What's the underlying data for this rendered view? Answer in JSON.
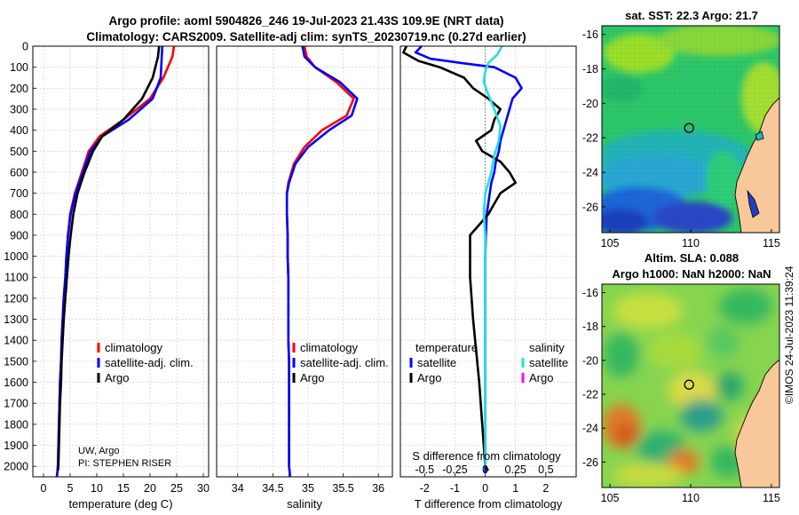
{
  "header": {
    "title_line1": "Argo profile: aoml 5904826_246 19-Jul-2023 21.43S 109.9E (NRT data)",
    "title_line2": "Climatology: CARS2009. Satellite-adj clim: synTS_20230719.nc (0.27d earlier)"
  },
  "credit": "©IMOS 24-Jul-2023 11:39:24",
  "profile_axes": {
    "depth_ticks": [
      0,
      100,
      200,
      300,
      400,
      500,
      600,
      700,
      800,
      900,
      1000,
      1100,
      1200,
      1300,
      1400,
      1500,
      1600,
      1700,
      1800,
      1900,
      2000
    ],
    "depth_range": [
      0,
      2050
    ]
  },
  "chart_data": [
    {
      "type": "line",
      "xlabel": "temperature (deg C)",
      "xlim": [
        -2,
        31
      ],
      "xticks": [
        0,
        5,
        10,
        15,
        20,
        25,
        30
      ],
      "ylim": [
        2050,
        0
      ],
      "legend": [
        "climatology",
        "satellite-adj. clim.",
        "Argo"
      ],
      "annotation_line1": "UW, Argo",
      "annotation_line2": "PI: STEPHEN RISER",
      "series": [
        {
          "name": "climatology",
          "color": "#ff0000",
          "x": [
            24.5,
            24.2,
            22.5,
            20,
            15,
            10.5,
            8.5,
            7.2,
            5.9,
            5.0,
            4.6,
            4.3,
            4.1,
            3.8,
            3.6,
            3.4,
            3.3,
            3.1,
            3.0,
            2.9,
            2.8,
            2.7,
            2.6,
            2.5
          ],
          "y": [
            0,
            50,
            150,
            250,
            350,
            430,
            500,
            600,
            700,
            800,
            900,
            1000,
            1100,
            1200,
            1300,
            1400,
            1500,
            1600,
            1700,
            1800,
            1900,
            2000,
            2030,
            2050
          ]
        },
        {
          "name": "satellite-adj. clim.",
          "color": "#0000ff",
          "x": [
            22.3,
            22.2,
            22.0,
            20.5,
            16,
            11,
            8.8,
            7.4,
            6.0,
            5.1,
            4.6,
            4.3,
            4.1,
            3.8,
            3.6,
            3.4,
            3.3,
            3.1,
            3.0,
            2.9,
            2.8,
            2.7,
            2.6,
            2.5
          ],
          "y": [
            0,
            50,
            150,
            250,
            350,
            430,
            500,
            600,
            700,
            800,
            900,
            1000,
            1100,
            1200,
            1300,
            1400,
            1500,
            1600,
            1700,
            1800,
            1900,
            2000,
            2030,
            2050
          ]
        },
        {
          "name": "Argo",
          "color": "#000000",
          "x": [
            21.7,
            21.5,
            20.5,
            18.5,
            15,
            11,
            9.3,
            7.7,
            6.4,
            5.6,
            5.1,
            4.7,
            4.4,
            4.1,
            3.8,
            3.6,
            3.4,
            3.3,
            3.1,
            3.0,
            2.9,
            2.8,
            2.7
          ],
          "y": [
            0,
            50,
            150,
            250,
            350,
            430,
            500,
            600,
            700,
            800,
            900,
            1000,
            1100,
            1200,
            1300,
            1400,
            1500,
            1600,
            1700,
            1800,
            1900,
            2000,
            2020
          ]
        }
      ]
    },
    {
      "type": "line",
      "xlabel": "salinity",
      "xlim": [
        33.7,
        36.2
      ],
      "xticks": [
        34,
        34.5,
        35,
        35.5,
        36
      ],
      "ylim": [
        2050,
        0
      ],
      "legend": [
        "climatology",
        "satellite-adj. clim.",
        "Argo"
      ],
      "series": [
        {
          "name": "climatology",
          "color": "#ff0000",
          "x": [
            34.95,
            34.98,
            35.1,
            35.4,
            35.65,
            35.55,
            35.2,
            34.95,
            34.8,
            34.72,
            34.7,
            34.7,
            34.71,
            34.71,
            34.72,
            34.72,
            34.72,
            34.72,
            34.73,
            34.73,
            34.73,
            34.73,
            34.73,
            34.73,
            34.74,
            34.74
          ],
          "y": [
            0,
            50,
            100,
            170,
            250,
            330,
            400,
            480,
            560,
            650,
            700,
            800,
            900,
            1000,
            1100,
            1200,
            1300,
            1400,
            1500,
            1600,
            1700,
            1800,
            1900,
            2000,
            2030,
            2050
          ]
        },
        {
          "name": "satellite-adj. clim.",
          "color": "#0000ff",
          "x": [
            34.92,
            34.95,
            35.1,
            35.45,
            35.7,
            35.62,
            35.3,
            35.0,
            34.82,
            34.73,
            34.7,
            34.7,
            34.71,
            34.71,
            34.72,
            34.72,
            34.72,
            34.72,
            34.73,
            34.73,
            34.73,
            34.73,
            34.73,
            34.73,
            34.74,
            34.74
          ],
          "y": [
            0,
            50,
            100,
            170,
            250,
            330,
            400,
            480,
            560,
            650,
            700,
            800,
            900,
            1000,
            1100,
            1200,
            1300,
            1400,
            1500,
            1600,
            1700,
            1800,
            1900,
            2000,
            2030,
            2050
          ]
        }
      ]
    },
    {
      "type": "line",
      "xlabel": "T difference from climatology",
      "xlim": [
        -2.8,
        3.0
      ],
      "xticks": [
        -2,
        -1,
        0,
        1,
        2
      ],
      "top_axis_label": "S difference from climatology",
      "top_ticks": [
        "-0.5",
        "-0.25",
        "0",
        "0.25",
        "0.5"
      ],
      "ylim": [
        2050,
        0
      ],
      "legend_left_header": "temperature",
      "legend_right_header": "salinity",
      "legend_left": [
        "satellite",
        "Argo"
      ],
      "legend_right": [
        "satellite",
        "Argo"
      ],
      "series": [
        {
          "name": "temperature satellite",
          "color": "#0000ff",
          "x": [
            -2.1,
            -2.3,
            -1.8,
            -0.8,
            0.3,
            1.0,
            1.2,
            0.9,
            0.8,
            0.7,
            0.6,
            0.5,
            0.45,
            0.35,
            0.3,
            0.2,
            0.15,
            0.1,
            0.05,
            0.02,
            0.0,
            0.0,
            0.0,
            0.0,
            0.0
          ],
          "y": [
            0,
            30,
            60,
            80,
            100,
            150,
            200,
            250,
            300,
            350,
            400,
            450,
            500,
            550,
            600,
            650,
            700,
            750,
            800,
            900,
            1000,
            1200,
            1500,
            1800,
            2030
          ]
        },
        {
          "name": "temperature Argo",
          "color": "#000000",
          "x": [
            -2.6,
            -2.7,
            -2.2,
            -1.5,
            -0.7,
            -0.4,
            0.1,
            0.5,
            0.3,
            0.2,
            -0.3,
            -0.1,
            0.5,
            0.8,
            1.0,
            0.5,
            0.3,
            0.1,
            -0.2,
            -0.5,
            -0.5,
            -0.4,
            -0.2,
            -0.1,
            0.0,
            0.1
          ],
          "y": [
            0,
            30,
            70,
            100,
            150,
            200,
            250,
            300,
            350,
            400,
            450,
            500,
            550,
            600,
            650,
            700,
            750,
            800,
            850,
            900,
            1100,
            1300,
            1600,
            1800,
            2000,
            2020
          ]
        },
        {
          "name": "salinity satellite",
          "color": "#22e0e0",
          "x": [
            0.55,
            0.4,
            0.1,
            0.0,
            -0.05,
            0.1,
            0.3,
            0.5,
            0.45,
            0.3,
            0.2,
            0.1,
            0.0,
            -0.05,
            0.0,
            0.0,
            0.0,
            0.0
          ],
          "y": [
            0,
            40,
            80,
            120,
            170,
            230,
            300,
            380,
            450,
            520,
            600,
            650,
            700,
            800,
            900,
            1200,
            1600,
            2000
          ]
        }
      ]
    }
  ],
  "map_sst": {
    "title": "sat. SST: 22.3 Argo: 21.7",
    "x_ticks": [
      105,
      110,
      115
    ],
    "y_ticks": [
      -16,
      -18,
      -20,
      -22,
      -24,
      -26
    ],
    "x_range": [
      104.5,
      115.5
    ],
    "y_range": [
      -27.5,
      -15.5
    ],
    "float_lon": 109.9,
    "float_lat": -21.43
  },
  "map_sla": {
    "title_line1": "Altim. SLA: 0.088",
    "title_line2": "Argo h1000: NaN h2000: NaN",
    "x_ticks": [
      105,
      110,
      115
    ],
    "y_ticks": [
      -16,
      -18,
      -20,
      -22,
      -24,
      -26
    ],
    "x_range": [
      104.5,
      115.5
    ],
    "y_range": [
      -27.5,
      -15.5
    ],
    "float_lon": 109.9,
    "float_lat": -21.43
  },
  "colors": {
    "climatology": "#ff0000",
    "satellite_adj": "#0000ff",
    "argo": "#000000",
    "salinity_satellite": "#22e0e0",
    "salinity_argo": "#ff00ff",
    "land": "#f8c89a"
  }
}
